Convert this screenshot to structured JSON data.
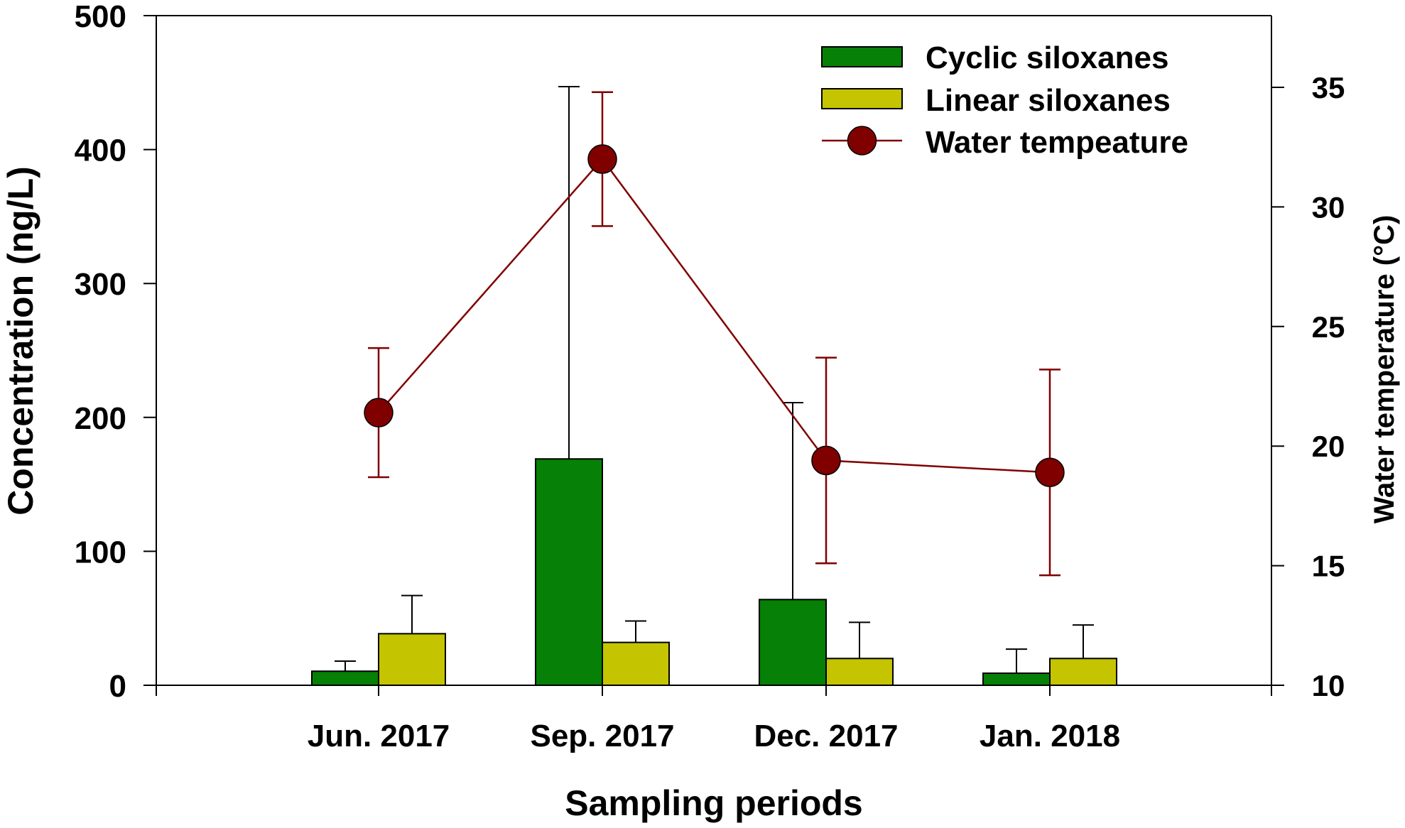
{
  "chart_data": {
    "type": "bar",
    "title": "",
    "xlabel": "Sampling periods",
    "ylabel": "Concentration (ng/L)",
    "y2label": "Water temperature (°C)",
    "categories": [
      "Jun. 2017",
      "Sep. 2017",
      "Dec. 2017",
      "Jan. 2018"
    ],
    "ylim": [
      0,
      500
    ],
    "yticks": [
      "0",
      "100",
      "200",
      "300",
      "400",
      "500"
    ],
    "y2lim": [
      10,
      38
    ],
    "y2ticks": [
      "10",
      "15",
      "20",
      "25",
      "30",
      "35"
    ],
    "grid": false,
    "legend_position": "top-right",
    "series": [
      {
        "name": "Cyclic siloxanes",
        "kind": "bar",
        "axis": "left",
        "color": "#068006",
        "values": [
          10.5,
          169,
          64,
          9
        ],
        "error_upper": [
          18,
          447,
          211,
          27
        ]
      },
      {
        "name": "Linear siloxanes",
        "kind": "bar",
        "axis": "left",
        "color": "#c4c400",
        "values": [
          38.5,
          32,
          20,
          20
        ],
        "error_upper": [
          67,
          48,
          47,
          45
        ]
      },
      {
        "name": "Water tempeature",
        "kind": "line",
        "axis": "right",
        "color": "#800000",
        "values": [
          21.4,
          32.0,
          19.4,
          18.9
        ],
        "error_low": [
          18.7,
          29.2,
          15.1,
          14.6
        ],
        "error_high": [
          24.1,
          34.8,
          23.7,
          23.2
        ]
      }
    ]
  }
}
